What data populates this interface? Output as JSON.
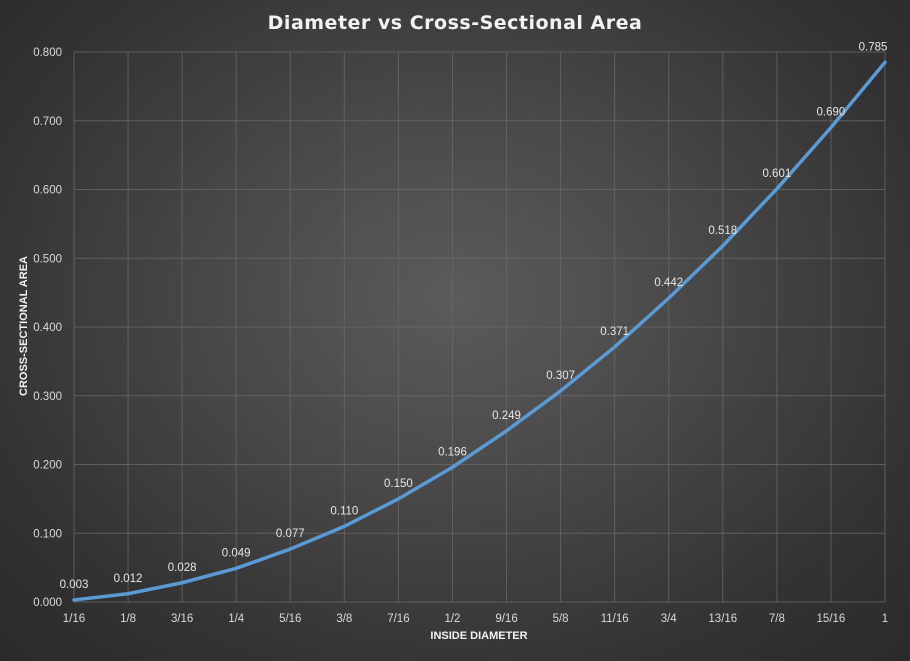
{
  "chart_data": {
    "type": "line",
    "title": "Diameter vs Cross-Sectional Area",
    "xlabel": "INSIDE DIAMETER",
    "ylabel": "CROSS-SECTIONAL AREA",
    "categories": [
      "1/16",
      "1/8",
      "3/16",
      "1/4",
      "5/16",
      "3/8",
      "7/16",
      "1/2",
      "9/16",
      "5/8",
      "11/16",
      "3/4",
      "13/16",
      "7/8",
      "15/16",
      "1"
    ],
    "series": [
      {
        "values": [
          0.003,
          0.012,
          0.028,
          0.049,
          0.077,
          0.11,
          0.15,
          0.196,
          0.249,
          0.307,
          0.371,
          0.442,
          0.518,
          0.601,
          0.69,
          0.785
        ],
        "data_labels": [
          "0.003",
          "0.012",
          "0.028",
          "0.049",
          "0.077",
          "0.110",
          "0.150",
          "0.196",
          "0.249",
          "0.307",
          "0.371",
          "0.442",
          "0.518",
          "0.601",
          "0.690",
          "0.785"
        ],
        "color": "#5b9bd5"
      }
    ],
    "ylim": [
      0,
      0.8
    ],
    "y_ticks": [
      "0.000",
      "0.100",
      "0.200",
      "0.300",
      "0.400",
      "0.500",
      "0.600",
      "0.700",
      "0.800"
    ],
    "grid": true,
    "legend": "none"
  }
}
